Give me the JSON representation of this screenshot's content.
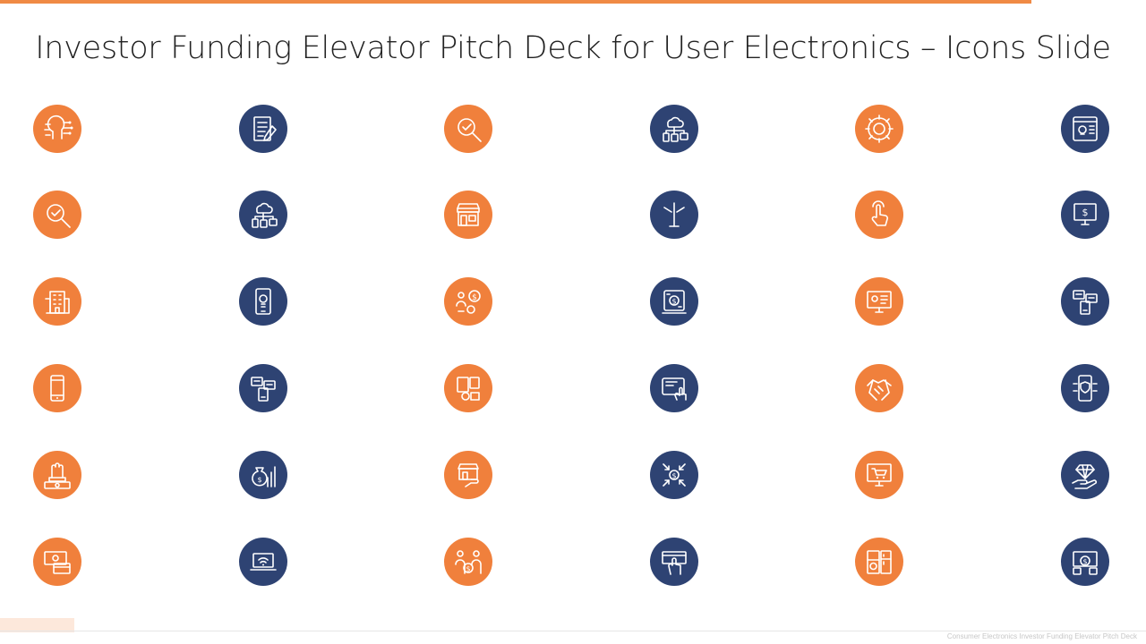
{
  "slide": {
    "title": "Investor Funding Elevator Pitch Deck for User Electronics – Icons Slide",
    "footer": "Consumer Electronics Investor Funding Elevator Pitch Deck"
  },
  "colors": {
    "accent": "#F08A45",
    "orange": "#F0803C",
    "navy": "#2E4373",
    "stroke": "#ffffff"
  },
  "icons": [
    [
      "circuit-head-icon",
      "checklist-pen-icon",
      "magnifier-check-icon",
      "cloud-devices-icon",
      "gear-globe-icon",
      "tablet-bulb-icon"
    ],
    [
      "magnifier-check-icon",
      "cloud-devices-icon",
      "storefront-icon",
      "road-sign-icon",
      "hand-pointer-icon",
      "monitor-dollar-icon"
    ],
    [
      "office-building-icon",
      "phone-bulb-icon",
      "person-gear-dollar-icon",
      "tablet-dollar-icon",
      "monitor-bulb-icon",
      "chat-phone-icon"
    ],
    [
      "smartphone-icon",
      "chat-phone-icon",
      "devices-gear-icon",
      "tablet-touch-icon",
      "handshake-icon",
      "phone-shield-icon"
    ],
    [
      "hand-money-icon",
      "money-bag-chart-icon",
      "store-hand-icon",
      "arrows-dollar-icon",
      "monitor-cart-icon",
      "diamond-hand-icon"
    ],
    [
      "cash-card-icon",
      "devices-wifi-icon",
      "people-dollar-icon",
      "hand-card-icon",
      "appliances-icon",
      "devices-dollar-icon"
    ]
  ]
}
